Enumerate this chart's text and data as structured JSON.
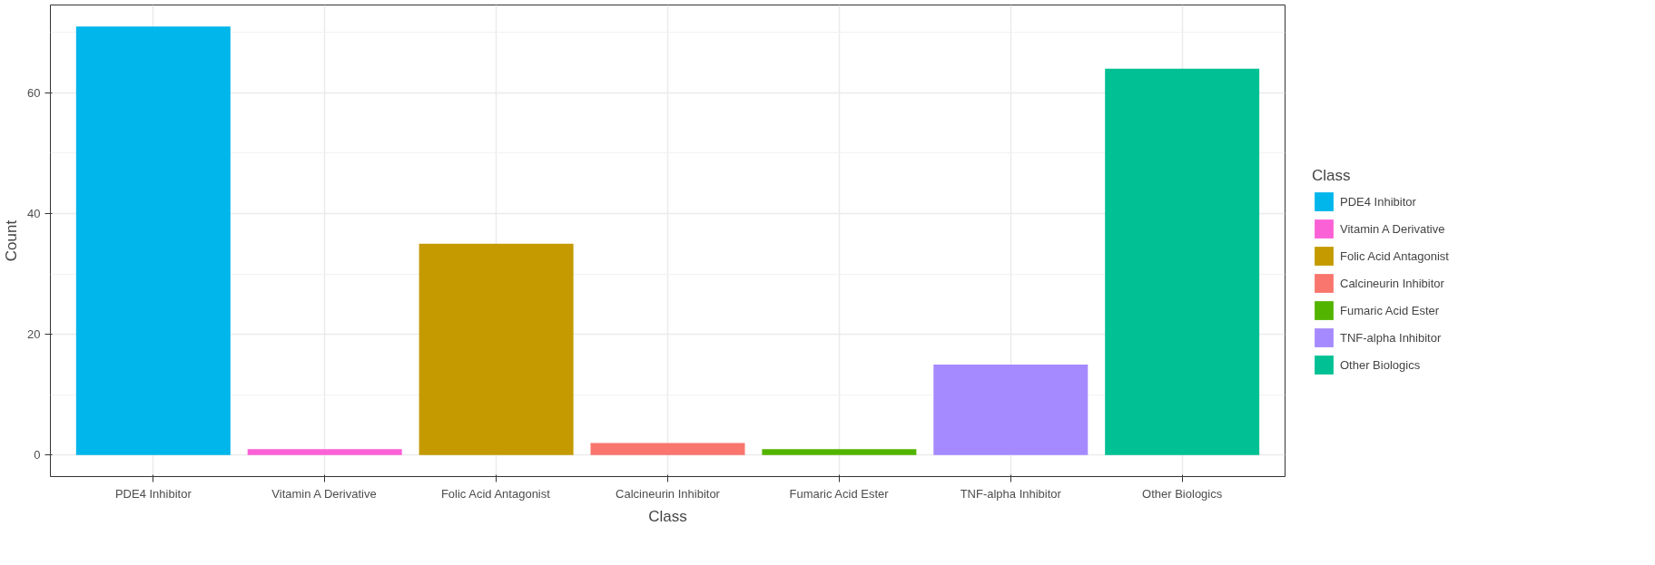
{
  "chart_data": {
    "type": "bar",
    "xlabel": "Class",
    "ylabel": "Count",
    "legend_title": "Class",
    "categories": [
      "PDE4 Inhibitor",
      "Vitamin A Derivative",
      "Folic Acid Antagonist",
      "Calcineurin Inhibitor",
      "Fumaric Acid Ester",
      "TNF-alpha Inhibitor",
      "Other Biologics"
    ],
    "series": [
      {
        "name": "PDE4 Inhibitor",
        "color": "#00b6eb",
        "values": [
          71,
          null,
          null,
          null,
          null,
          null,
          null
        ]
      },
      {
        "name": "Vitamin A Derivative",
        "color": "#fb61d7",
        "values": [
          null,
          1,
          null,
          null,
          null,
          null,
          null
        ]
      },
      {
        "name": "Folic Acid Antagonist",
        "color": "#c49a00",
        "values": [
          null,
          null,
          35,
          null,
          null,
          null,
          null
        ]
      },
      {
        "name": "Calcineurin Inhibitor",
        "color": "#f8766d",
        "values": [
          null,
          null,
          null,
          2,
          null,
          null,
          null
        ]
      },
      {
        "name": "Fumaric Acid Ester",
        "color": "#53b400",
        "values": [
          null,
          null,
          null,
          null,
          1,
          null,
          null
        ]
      },
      {
        "name": "TNF-alpha Inhibitor",
        "color": "#a58aff",
        "values": [
          null,
          null,
          null,
          null,
          null,
          15,
          null
        ]
      },
      {
        "name": "Other Biologics",
        "color": "#00c094",
        "values": [
          null,
          null,
          null,
          null,
          null,
          null,
          64
        ]
      }
    ],
    "ylim": [
      -3.55,
      74.55
    ],
    "yticks": [
      0,
      20,
      40,
      60
    ],
    "grid": true,
    "legend": "right"
  }
}
